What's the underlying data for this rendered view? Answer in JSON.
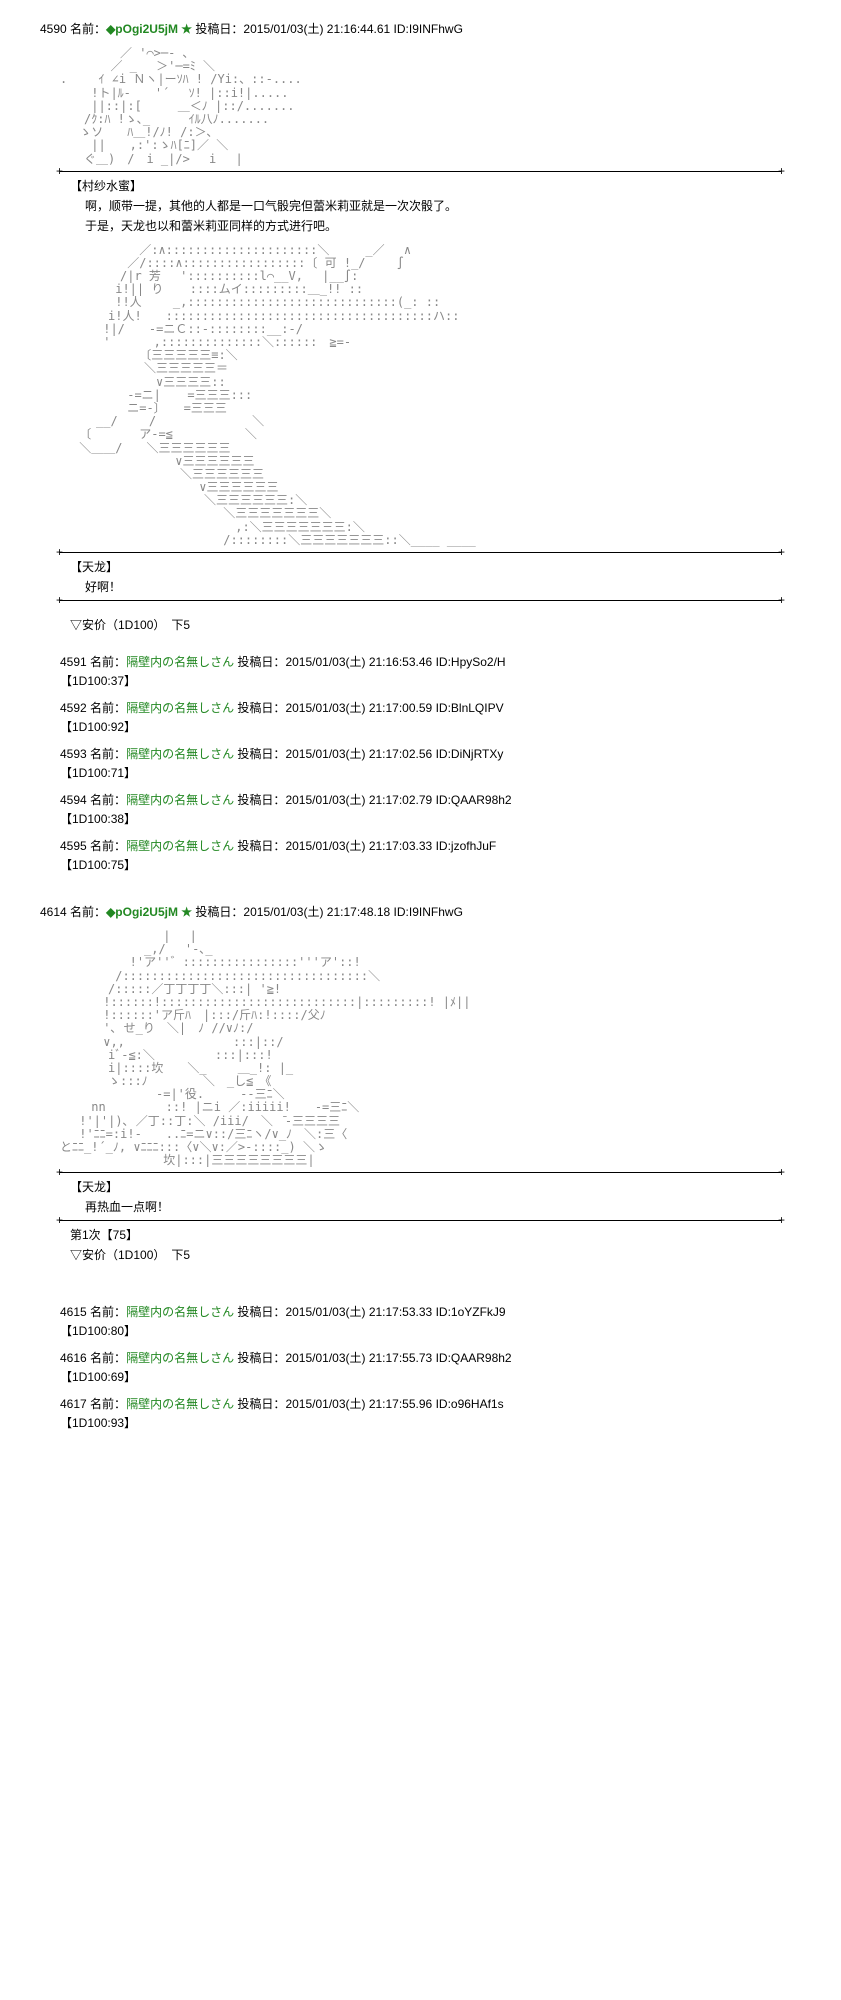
{
  "posts": [
    {
      "num": "4590",
      "name": "◆pOgi2U5jM ★",
      "date": "2015/01/03(土) 21:16:44.61",
      "id": "I9INFhwG",
      "aa": "　　　　　／ '⌒>─‐ ､\n　　 　 ／ _　 ＞'─=ﾐ ＼\n.　　 ｲ ∠i Ｎヽ|ーｿﾊ ! /Yi:、::-....\n　　 !ト|ﾙ-　　'´　 ｿ! |::i!|.....\n　　 ||::|:[　　　＿＜ﾉ |::/.......\n　　/ｸ:ﾊ !ゝ､_　 　 ｲﾙ八ﾉ.......\n　 ゝソ　　ﾊ＿!/ﾉ! /:＞､\n　　 ||　　,:':ゝﾊ[ﾆ]／ ＼\n　　ぐ＿)　/　i _|/>　 i　 |",
      "speaker": "【村纱水蜜】",
      "lines": [
        "啊，顺带一提，其他的人都是一口气骰完但蕾米莉亚就是一次次骰了。",
        "于是，天龙也以和蕾米莉亚同样的方式进行吧。"
      ],
      "aa2": "　　　　　　 ／:∧:::::::::::::::::::::＼　　　_／　 ∧\n　　　　　 ／/::::∧:::::::::::::::::〔 可 !_/　　 ∫\n　　　　　/|r 芳 　'::::::::::l⌒__V,　 |__∫:\n　　　　 i!|| り 　 ::::ムイ:::::::::＿_!! ::\n　　　　 !!人　　 _,:::::::::::::::::::::::::::::(_: ::\n　　　　i!人!　　:::::::::::::::::::::::::::::::::::::ハ::\n　　　 !|/　　-=ニＣ::-::::::::__:-/\n　　　 '　　　 ,::::::::::::::＼::::::　≧=-\n　　　　　　 〔三三三三三≡:＼\n　　　　　　　＼三三三三三＝\n　　　　　　　　∨三三三三::\n　　　　　 -=ニ| 　 =三三三:::\n　　　　　 ニ=-〕　　=三三三\n　　　__/　　 /　　　　　　　　＼\n　 〔　　　　ア-=≦　　　　　　＼\n　 ＼＿＿/　　＼三三三三三三\n　　　　　　　　　 ∨三三三三三三\n　　　　　　　　　　＼三三三三三三\n　　　　　　　　　　　 ∨三三三三三三\n　　　　　　　　　　　　＼三三三三三三:＼\n　　　　　　　　　　　　　 ＼三三三三三三三＼\n　　　　　　　　　　　　　　 ,:＼三三三三三三三:＼\n　　　　　　　　　　　　　 /::::::::＼三三三三三三三::＼____ ____",
      "speaker2": "【天龙】",
      "lines2": [
        "好啊！"
      ],
      "prompt": "▽安价（1D100）　下5"
    }
  ],
  "replies": [
    {
      "num": "4591",
      "name": "隔壁内の名無しさん",
      "date": "2015/01/03(土) 21:16:53.46",
      "id": "HpySo2/H",
      "roll": "【1D100:37】"
    },
    {
      "num": "4592",
      "name": "隔壁内の名無しさん",
      "date": "2015/01/03(土) 21:17:00.59",
      "id": "BlnLQIPV",
      "roll": "【1D100:92】"
    },
    {
      "num": "4593",
      "name": "隔壁内の名無しさん",
      "date": "2015/01/03(土) 21:17:02.56",
      "id": "DiNjRTXy",
      "roll": "【1D100:71】"
    },
    {
      "num": "4594",
      "name": "隔壁内の名無しさん",
      "date": "2015/01/03(土) 21:17:02.79",
      "id": "QAAR98h2",
      "roll": "【1D100:38】"
    },
    {
      "num": "4595",
      "name": "隔壁内の名無しさん",
      "date": "2015/01/03(土) 21:17:03.33",
      "id": "jzofhJuF",
      "roll": "【1D100:75】"
    }
  ],
  "post2": {
    "num": "4614",
    "name": "◆pOgi2U5jM ★",
    "date": "2015/01/03(土) 21:17:48.18",
    "id": "I9INFhwG",
    "aa": "　　　　　　　　 |　 |\n　　　　　　　_,/　 '-､_\n　　 　 　 !'ア''゛::::::::::::::::'''ア'::!\n　　　　 /::::::::::::::::::::::::::::::::::＼\n　　　　/:::::／丁丁丁丁＼:::| '≧!\n　　　 !::::::!:::::::::::::::::::::::::::|:::::::::! |ﾒ||\n　　　 !::::::'ア斤ﾊ　|:::/斤ﾊ:!::::/父ﾉ\n　　　 '､ せ_り　＼|　ﾉ //∨ﾉ:/\n　　　 ∨,,　　 　 　 　 　 :::|::/\n　　　　iﾞ-≦:＼　　　　　:::|:::!\n　　　　i|::::坎　　＼_　　 ＿_!: |_\n　　　　ゝ:::ﾉ　　　　 ＼　_し≦　《\n　　　　　　　　-=|'役.　　　--三ﾆ＼\n　　 nn　　　　　::! |ニi ／:iiiii!　　-=三ﾆ＼\n　 !'|'|)､ ／丁::丁:＼ /iii/　＼　̄-三三三三\n　 !'ﾆﾆ=:i!-　　..ﾆ=ニ∨::/三ﾆヽ/∨_ﾉ　＼:三〈\nとﾆﾆ_!´_ﾉ, ∨ﾆﾆﾆ:::〈∨＼∨:／>-::::_) ＼ゝ\n　　　　　　　　 坎|:::|三三三三三三三三|",
    "speaker": "【天龙】",
    "lines": [
      "再热血一点啊！"
    ],
    "result": "第1次【75】",
    "prompt": "▽安价（1D100）　下5"
  },
  "replies2": [
    {
      "num": "4615",
      "name": "隔壁内の名無しさん",
      "date": "2015/01/03(土) 21:17:53.33",
      "id": "1oYZFkJ9",
      "roll": "【1D100:80】"
    },
    {
      "num": "4616",
      "name": "隔壁内の名無しさん",
      "date": "2015/01/03(土) 21:17:55.73",
      "id": "QAAR98h2",
      "roll": "【1D100:69】"
    },
    {
      "num": "4617",
      "name": "隔壁内の名無しさん",
      "date": "2015/01/03(土) 21:17:55.96",
      "id": "o96HAf1s",
      "roll": "【1D100:93】"
    }
  ],
  "labels": {
    "name_prefix": "名前：",
    "date_prefix": "投稿日：",
    "id_prefix": "ID:"
  }
}
